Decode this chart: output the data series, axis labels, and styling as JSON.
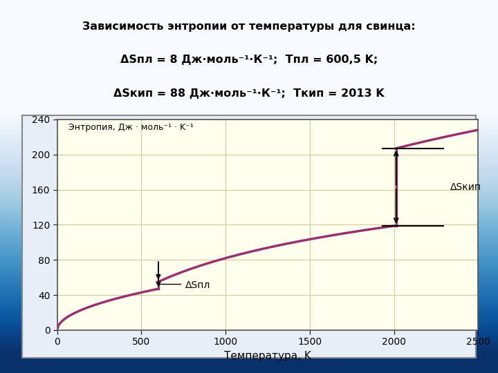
{
  "title_line1": "Зависимость энтропии от температуры для свинца:",
  "title_line2_part1": "ΔS",
  "title_line2_sub1": "пл",
  "title_line2_part2": " = 8 Дж·моль⁻¹·К⁻¹; T",
  "title_line2_sub2": "пл",
  "title_line2_part3": " = 600,5 K;",
  "title_line3_part1": "ΔS",
  "title_line3_sub1": "кип",
  "title_line3_part2": " = 88 Дж·моль⁻¹·К⁻¹; T",
  "title_line3_sub2": "кип",
  "title_line3_part3": " = 2013 K",
  "xlabel": "Температура, K",
  "ylabel_inside": "Энтропия, Дж · моль⁻¹ · K⁻¹",
  "xlim": [
    0,
    2500
  ],
  "ylim": [
    0,
    240
  ],
  "xticks": [
    0,
    500,
    1000,
    1500,
    2000,
    2500
  ],
  "yticks": [
    0,
    40,
    80,
    120,
    160,
    200,
    240
  ],
  "T_pl": 600.5,
  "S_before_pl": 47.0,
  "S_after_pl": 55.0,
  "T_kip": 2013,
  "S_before_kip": 119.0,
  "S_after_kip": 207.0,
  "S_end": 228.0,
  "curve_color": "#9B3070",
  "curve_linewidth": 2.5,
  "plot_bg": "#FFFFEE",
  "grid_color": "#CCCC99",
  "border_bg": "#DDEEFF",
  "fig_bg_top": "#0022AA",
  "fig_bg_bot": "#3366CC",
  "annotation_label_pl": "ΔSпл",
  "annotation_label_kip": "ΔSкип"
}
